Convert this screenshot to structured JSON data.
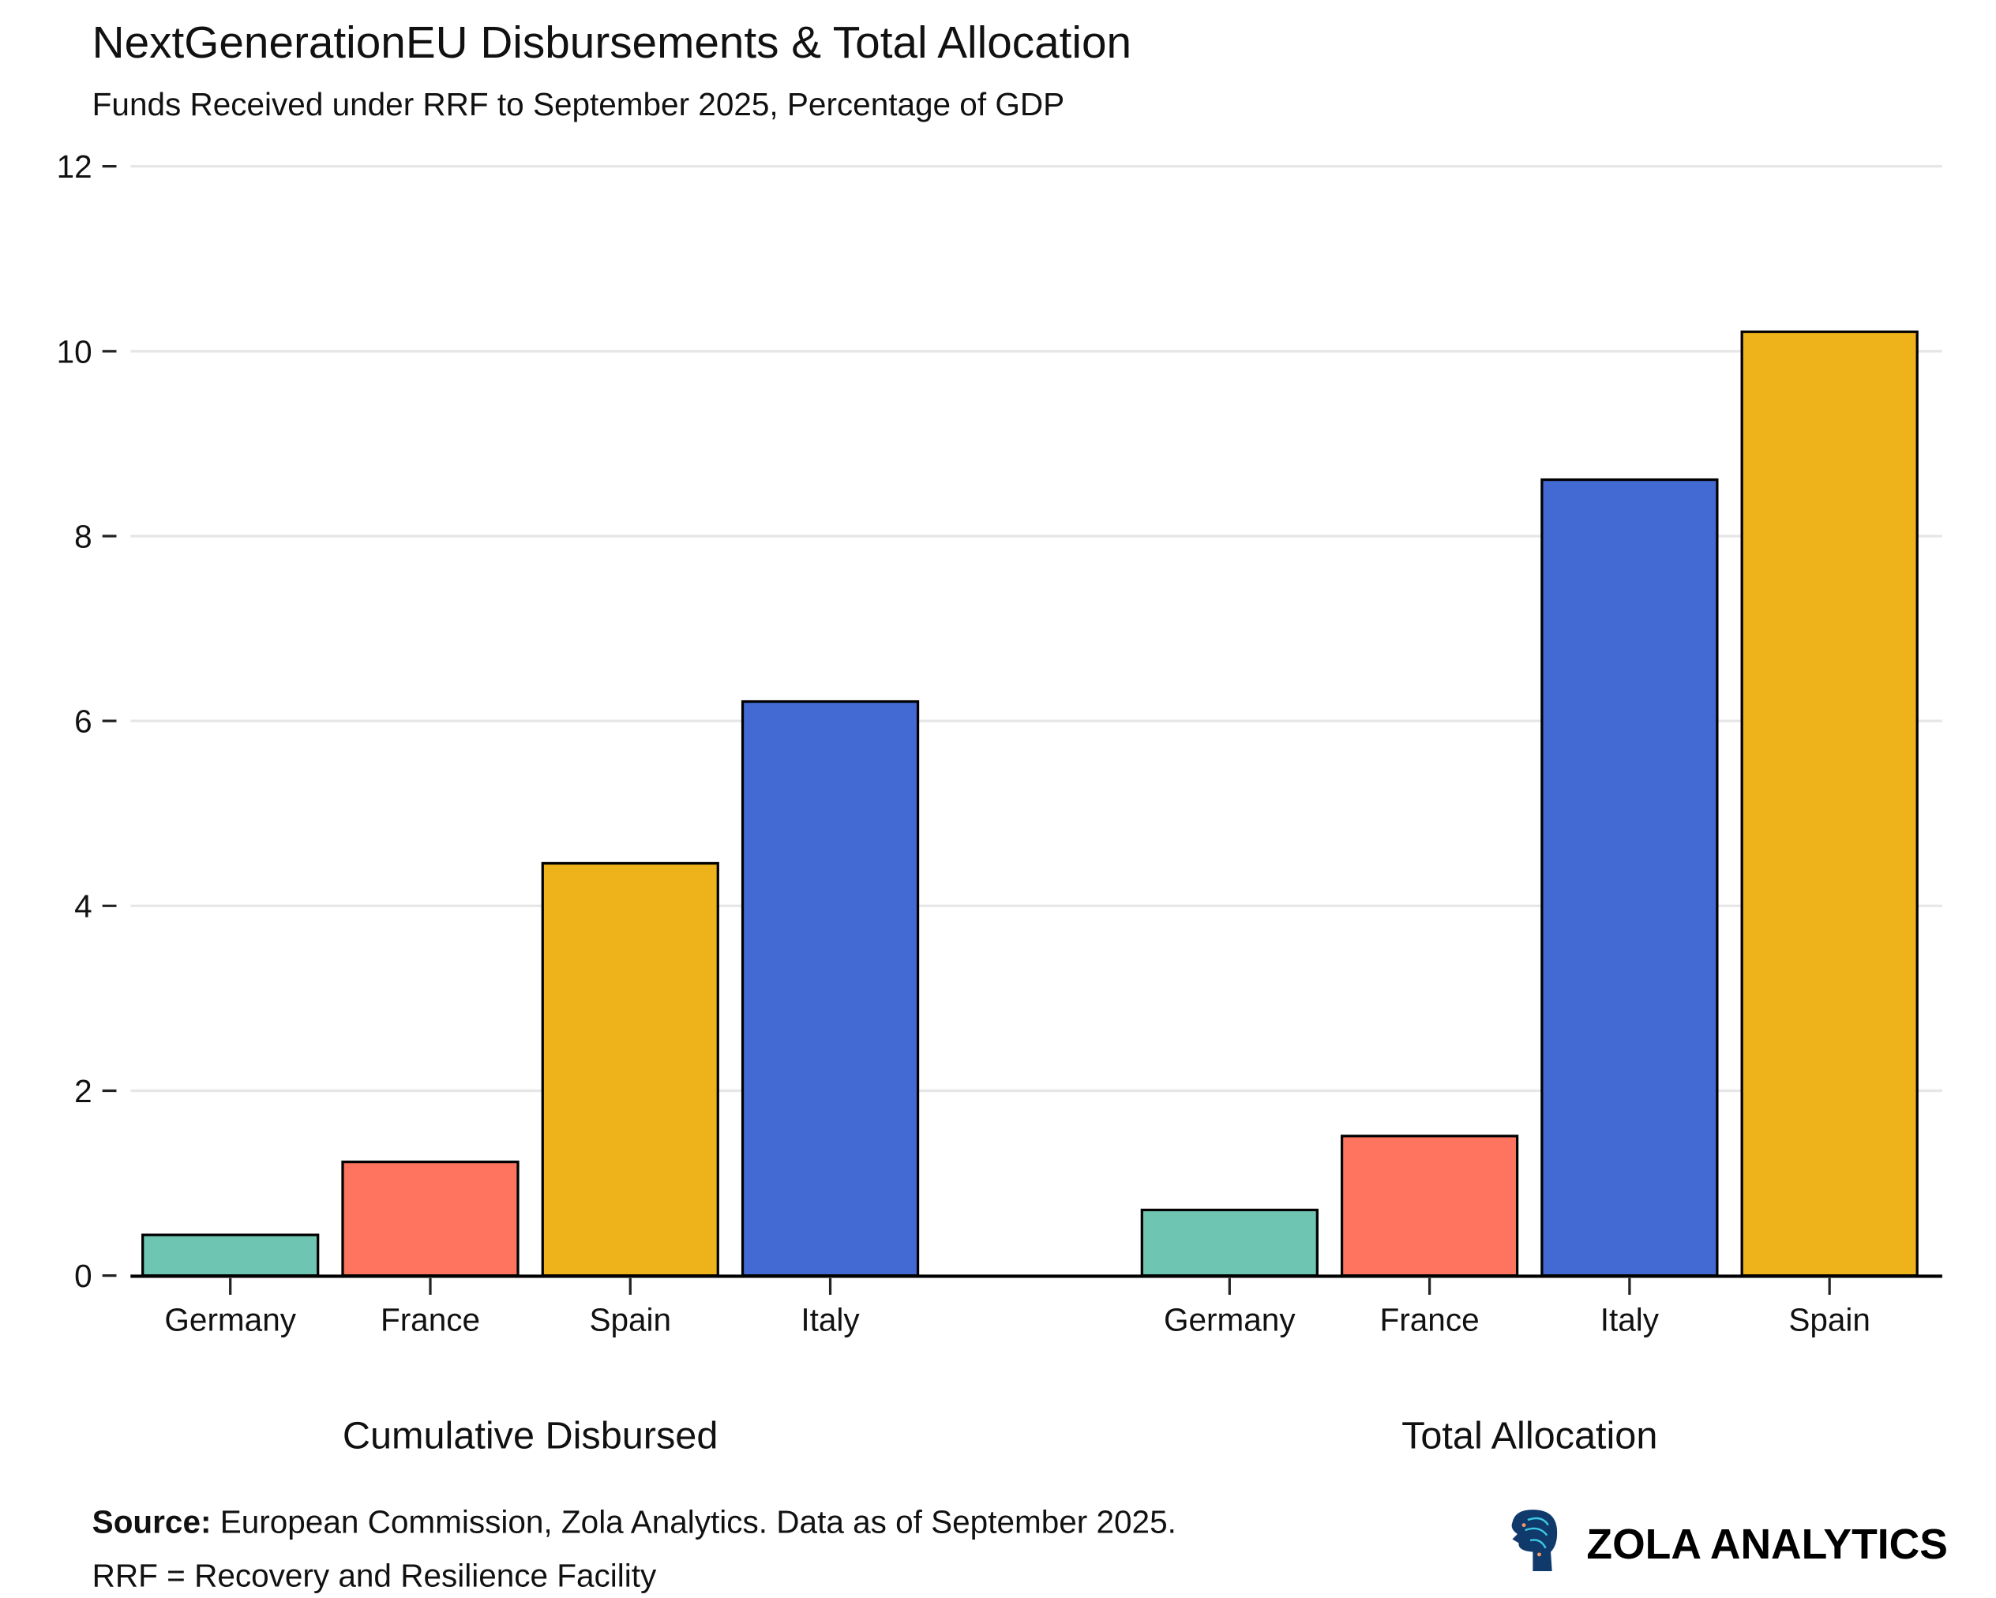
{
  "chart_data": {
    "type": "bar",
    "title": "NextGenerationEU Disbursements & Total Allocation",
    "subtitle": "Funds Received under RRF to September 2025, Percentage of GDP",
    "xlabel": "",
    "ylabel": "",
    "ylim": [
      0,
      12
    ],
    "yticks": [
      "0",
      "2",
      "4",
      "6",
      "8",
      "10",
      "12"
    ],
    "grid": true,
    "groups": [
      {
        "label": "Cumulative Disbursed",
        "categories": [
          "Germany",
          "France",
          "Spain",
          "Italy"
        ],
        "values": [
          0.44,
          1.23,
          4.46,
          6.21
        ],
        "colors": [
          "#6ec6b2",
          "#ff745e",
          "#eeb31b",
          "#436ad3"
        ]
      },
      {
        "label": "Total Allocation",
        "categories": [
          "Germany",
          "France",
          "Italy",
          "Spain"
        ],
        "values": [
          0.71,
          1.51,
          8.61,
          10.21
        ],
        "colors": [
          "#6ec6b2",
          "#ff745e",
          "#436ad3",
          "#eeb31b"
        ]
      }
    ]
  },
  "footer": {
    "source_label": "Source:",
    "source_text": " European Commission, Zola Analytics. Data as of September 2025.",
    "note": "RRF = Recovery and Resilience Facility"
  },
  "logo": {
    "text": "ZOLA ANALYTICS",
    "icon": "head-circuit-icon",
    "color": "#0f3a6b"
  }
}
